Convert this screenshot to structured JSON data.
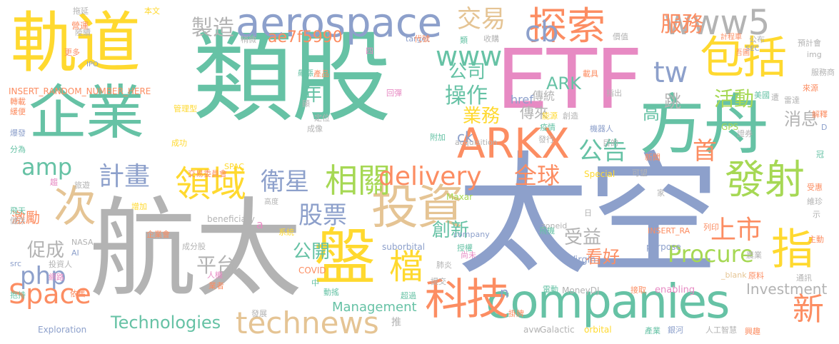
{
  "palette": {
    "teal": "#66c2a5",
    "orange": "#fc8d62",
    "blue": "#8da0cb",
    "pink": "#e78ac3",
    "lime": "#a6d854",
    "yellow": "#ffd92f",
    "tan": "#e5c494",
    "gray": "#b3b3b3"
  },
  "words": [
    {
      "text": "類股",
      "color": "#66c2a5"
    },
    {
      "text": "太空",
      "color": "#8da0cb"
    },
    {
      "text": "航太",
      "color": "#b3b3b3"
    },
    {
      "text": "軌道",
      "color": "#ffd92f"
    },
    {
      "text": "企業",
      "color": "#66c2a5"
    },
    {
      "text": "ETF",
      "color": "#e78ac3"
    },
    {
      "text": "方舟",
      "color": "#66c2a5"
    },
    {
      "text": "aerospace",
      "color": "#8da0cb"
    },
    {
      "text": "companies",
      "color": "#66c2a5"
    },
    {
      "text": "盤",
      "color": "#ffd92f"
    },
    {
      "text": "投資",
      "color": "#e5c494"
    },
    {
      "text": "包括",
      "color": "#ffd92f"
    },
    {
      "text": "ARKX",
      "color": "#fc8d62"
    },
    {
      "text": "次",
      "color": "#e5c494"
    },
    {
      "text": "科技",
      "color": "#fc8d62"
    },
    {
      "text": "探索",
      "color": "#fc8d62"
    },
    {
      "text": "發射",
      "color": "#a6d854"
    },
    {
      "text": "指",
      "color": "#ffd92f"
    },
    {
      "text": "www5",
      "color": "#b3b3b3"
    },
    {
      "text": "領域",
      "color": "#ffd92f"
    },
    {
      "text": "相關",
      "color": "#a6d854"
    },
    {
      "text": "technews",
      "color": "#e5c494"
    },
    {
      "text": "delivery",
      "color": "#fc8d62"
    },
    {
      "text": "計畫",
      "color": "#8da0cb"
    },
    {
      "text": "Space",
      "color": "#fc8d62"
    },
    {
      "text": "Technologies",
      "color": "#66c2a5"
    },
    {
      "text": "檔",
      "color": "#ffd92f"
    },
    {
      "text": "衛星",
      "color": "#8da0cb"
    },
    {
      "text": "股票",
      "color": "#8da0cb"
    },
    {
      "text": "www",
      "color": "#66c2a5"
    },
    {
      "text": "cb",
      "color": "#8da0cb"
    },
    {
      "text": "交易",
      "color": "#e5c494"
    },
    {
      "text": "服務",
      "color": "#fc8d62"
    },
    {
      "text": "tw",
      "color": "#8da0cb"
    },
    {
      "text": "新",
      "color": "#fc8d62"
    },
    {
      "text": "上市",
      "color": "#fc8d62"
    },
    {
      "text": "公告",
      "color": "#66c2a5"
    },
    {
      "text": "全球",
      "color": "#fc8d62"
    },
    {
      "text": "php",
      "color": "#8da0cb"
    },
    {
      "text": "amp",
      "color": "#66c2a5"
    },
    {
      "text": "Procure",
      "color": "#a6d854"
    },
    {
      "text": "製造",
      "color": "#b3b3b3"
    },
    {
      "text": "操作",
      "color": "#66c2a5"
    },
    {
      "text": "業務",
      "color": "#ffd92f"
    },
    {
      "text": "公司",
      "color": "#66c2a5"
    },
    {
      "text": "ae7f5990",
      "color": "#fc8d62"
    },
    {
      "text": "活動",
      "color": "#a6d854"
    },
    {
      "text": "首",
      "color": "#fc8d62"
    },
    {
      "text": "高",
      "color": "#66c2a5"
    },
    {
      "text": "跳",
      "color": "#b3b3b3"
    },
    {
      "text": "ARK",
      "color": "#66c2a5"
    },
    {
      "text": "傳統",
      "color": "#b3b3b3"
    },
    {
      "text": "傳來",
      "color": "#b3b3b3"
    },
    {
      "text": "創新",
      "color": "#66c2a5"
    },
    {
      "text": "受益",
      "color": "#b3b3b3"
    },
    {
      "text": "平台",
      "color": "#b3b3b3"
    },
    {
      "text": "公開",
      "color": "#66c2a5"
    },
    {
      "text": "看好",
      "color": "#fc8d62"
    },
    {
      "text": "促成",
      "color": "#b3b3b3"
    },
    {
      "text": "激勵",
      "color": "#fc8d62"
    },
    {
      "text": "消息",
      "color": "#b3b3b3"
    },
    {
      "text": "Investment",
      "color": "#b3b3b3"
    },
    {
      "text": "Management",
      "color": "#66c2a5"
    },
    {
      "text": "年",
      "color": "#66c2a5"
    },
    {
      "text": "ck",
      "color": "#8da0cb"
    },
    {
      "text": "n",
      "color": "#8da0cb"
    },
    {
      "text": "a",
      "color": "#e78ac3"
    },
    {
      "text": "推",
      "color": "#b3b3b3"
    },
    {
      "text": "href",
      "color": "#8da0cb"
    },
    {
      "text": "INSERT_RANDOM_NUMBER_HERE",
      "color": "#fc8d62"
    },
    {
      "text": "INSERT_RA",
      "color": "#fc8d62"
    },
    {
      "text": "Exploration",
      "color": "#8da0cb"
    },
    {
      "text": "MoneyDJ",
      "color": "#b3b3b3"
    },
    {
      "text": "enabling",
      "color": "#e78ac3"
    },
    {
      "text": "Galactic",
      "color": "#b3b3b3"
    },
    {
      "text": "orbital",
      "color": "#ffd92f"
    },
    {
      "text": "avw",
      "color": "#b3b3b3"
    },
    {
      "text": "Virgin",
      "color": "#8da0cb"
    },
    {
      "text": "purpose",
      "color": "#8da0cb"
    },
    {
      "text": "suborbital",
      "color": "#8da0cb"
    },
    {
      "text": "beneficiary",
      "color": "#b3b3b3"
    },
    {
      "text": "company",
      "color": "#8da0cb"
    },
    {
      "text": "acquisition",
      "color": "#b3b3b3"
    },
    {
      "text": "zoneid",
      "color": "#b3b3b3"
    },
    {
      "text": "Maxar",
      "color": "#a6d854"
    },
    {
      "text": "COVID",
      "color": "#fc8d62"
    },
    {
      "text": "SPAC",
      "color": "#ffd92f"
    },
    {
      "text": "Special",
      "color": "#ffd92f"
    },
    {
      "text": "NASA",
      "color": "#b3b3b3"
    },
    {
      "text": "AI",
      "color": "#8da0cb"
    },
    {
      "text": "GPS",
      "color": "#a6d854"
    },
    {
      "text": "SEC",
      "color": "#8da0cb"
    },
    {
      "text": "IPO",
      "color": "#8da0cb"
    },
    {
      "text": "src",
      "color": "#8da0cb"
    },
    {
      "text": "img",
      "color": "#b3b3b3"
    },
    {
      "text": "target",
      "color": "#8da0cb"
    },
    {
      "text": "_blank",
      "color": "#e5c494"
    },
    {
      "text": "D",
      "color": "#8da0cb"
    },
    {
      "text": "拖延",
      "color": "#b3b3b3"
    },
    {
      "text": "陸續",
      "color": "#b3b3b3"
    },
    {
      "text": "本文",
      "color": "#ffd92f"
    },
    {
      "text": "營運",
      "color": "#fc8d62"
    },
    {
      "text": "轉載",
      "color": "#fc8d62"
    },
    {
      "text": "緩便",
      "color": "#fc8d62"
    },
    {
      "text": "管理型",
      "color": "#ffd92f"
    },
    {
      "text": "爆發",
      "color": "#8da0cb"
    },
    {
      "text": "更多",
      "color": "#fc8d62"
    },
    {
      "text": "分為",
      "color": "#66c2a5"
    },
    {
      "text": "成功",
      "color": "#ffd92f"
    },
    {
      "text": "趨",
      "color": "#e78ac3"
    },
    {
      "text": "旅遊",
      "color": "#b3b3b3"
    },
    {
      "text": "飛天",
      "color": "#66c2a5"
    },
    {
      "text": "儲存",
      "color": "#b3b3b3"
    },
    {
      "text": "網路",
      "color": "#e78ac3"
    },
    {
      "text": "抱持",
      "color": "#66c2a5"
    },
    {
      "text": "依舊",
      "color": "#fc8d62"
    },
    {
      "text": "投資人",
      "color": "#b3b3b3"
    },
    {
      "text": "增加",
      "color": "#ffd92f"
    },
    {
      "text": "企業會",
      "color": "#fc8d62"
    },
    {
      "text": "人機",
      "color": "#e78ac3"
    },
    {
      "text": "業者",
      "color": "#fc8d62"
    },
    {
      "text": "成分股",
      "color": "#b3b3b3"
    },
    {
      "text": "交易委員會",
      "color": "#fc8d62"
    },
    {
      "text": "高度",
      "color": "#b3b3b3"
    },
    {
      "text": "系統",
      "color": "#ffd92f"
    },
    {
      "text": "中",
      "color": "#66c2a5"
    },
    {
      "text": "動搖",
      "color": "#66c2a5"
    },
    {
      "text": "發展",
      "color": "#b3b3b3"
    },
    {
      "text": "超過",
      "color": "#66c2a5"
    },
    {
      "text": "提交",
      "color": "#b3b3b3"
    },
    {
      "text": "肺炎",
      "color": "#b3b3b3"
    },
    {
      "text": "授權",
      "color": "#66c2a5"
    },
    {
      "text": "尚未",
      "color": "#e78ac3"
    },
    {
      "text": "掛牌",
      "color": "#fc8d62"
    },
    {
      "text": "電動",
      "color": "#66c2a5"
    },
    {
      "text": "接取",
      "color": "#fc8d62"
    },
    {
      "text": "產業",
      "color": "#66c2a5"
    },
    {
      "text": "銀河",
      "color": "#8da0cb"
    },
    {
      "text": "人工智慧",
      "color": "#b3b3b3"
    },
    {
      "text": "興趣",
      "color": "#fc8d62"
    },
    {
      "text": "通訊",
      "color": "#b3b3b3"
    },
    {
      "text": "原料",
      "color": "#fc8d62"
    },
    {
      "text": "農業",
      "color": "#b3b3b3"
    },
    {
      "text": "列印",
      "color": "#fc8d62"
    },
    {
      "text": "主動",
      "color": "#fc8d62"
    },
    {
      "text": "示",
      "color": "#b3b3b3"
    },
    {
      "text": "維珍",
      "color": "#b3b3b3"
    },
    {
      "text": "受惠",
      "color": "#fc8d62"
    },
    {
      "text": "冠",
      "color": "#66c2a5"
    },
    {
      "text": "證券",
      "color": "#b3b3b3"
    },
    {
      "text": "解釋",
      "color": "#fc8d62"
    },
    {
      "text": "雷達",
      "color": "#b3b3b3"
    },
    {
      "text": "遭",
      "color": "#b3b3b3"
    },
    {
      "text": "美國",
      "color": "#66c2a5"
    },
    {
      "text": "來源",
      "color": "#fc8d62"
    },
    {
      "text": "預計會",
      "color": "#b3b3b3"
    },
    {
      "text": "服務商",
      "color": "#b3b3b3"
    },
    {
      "text": "公布",
      "color": "#b3b3b3"
    },
    {
      "text": "計程車",
      "color": "#fc8d62"
    },
    {
      "text": "吾圖",
      "color": "#fc8d62"
    },
    {
      "text": "價值",
      "color": "#b3b3b3"
    },
    {
      "text": "收購",
      "color": "#b3b3b3"
    },
    {
      "text": "類",
      "color": "#66c2a5"
    },
    {
      "text": "代號",
      "color": "#fc8d62"
    },
    {
      "text": "稍微",
      "color": "#b3b3b3"
    },
    {
      "text": "四",
      "color": "#e78ac3"
    },
    {
      "text": "飆漲",
      "color": "#66c2a5"
    },
    {
      "text": "產品",
      "color": "#fc8d62"
    },
    {
      "text": "回彈",
      "color": "#e78ac3"
    },
    {
      "text": "顯",
      "color": "#b3b3b3"
    },
    {
      "text": "定位",
      "color": "#b3b3b3"
    },
    {
      "text": "成像",
      "color": "#b3b3b3"
    },
    {
      "text": "附加",
      "color": "#66c2a5"
    },
    {
      "text": "發行",
      "color": "#b3b3b3"
    },
    {
      "text": "疫情",
      "color": "#66c2a5"
    },
    {
      "text": "創造",
      "color": "#b3b3b3"
    },
    {
      "text": "能源",
      "color": "#ffd92f"
    },
    {
      "text": "指出",
      "color": "#b3b3b3"
    },
    {
      "text": "載具",
      "color": "#fc8d62"
    },
    {
      "text": "機器人",
      "color": "#8da0cb"
    },
    {
      "text": "目的",
      "color": "#b3b3b3"
    },
    {
      "text": "新聞",
      "color": "#fc8d62"
    },
    {
      "text": "可望",
      "color": "#b3b3b3"
    },
    {
      "text": "家",
      "color": "#b3b3b3"
    },
    {
      "text": "飛機",
      "color": "#66c2a5"
    },
    {
      "text": "日",
      "color": "#b3b3b3"
    },
    {
      "text": "僅",
      "color": "#b3b3b3"
    },
    {
      "text": "營建",
      "color": "#fc8d62"
    }
  ]
}
